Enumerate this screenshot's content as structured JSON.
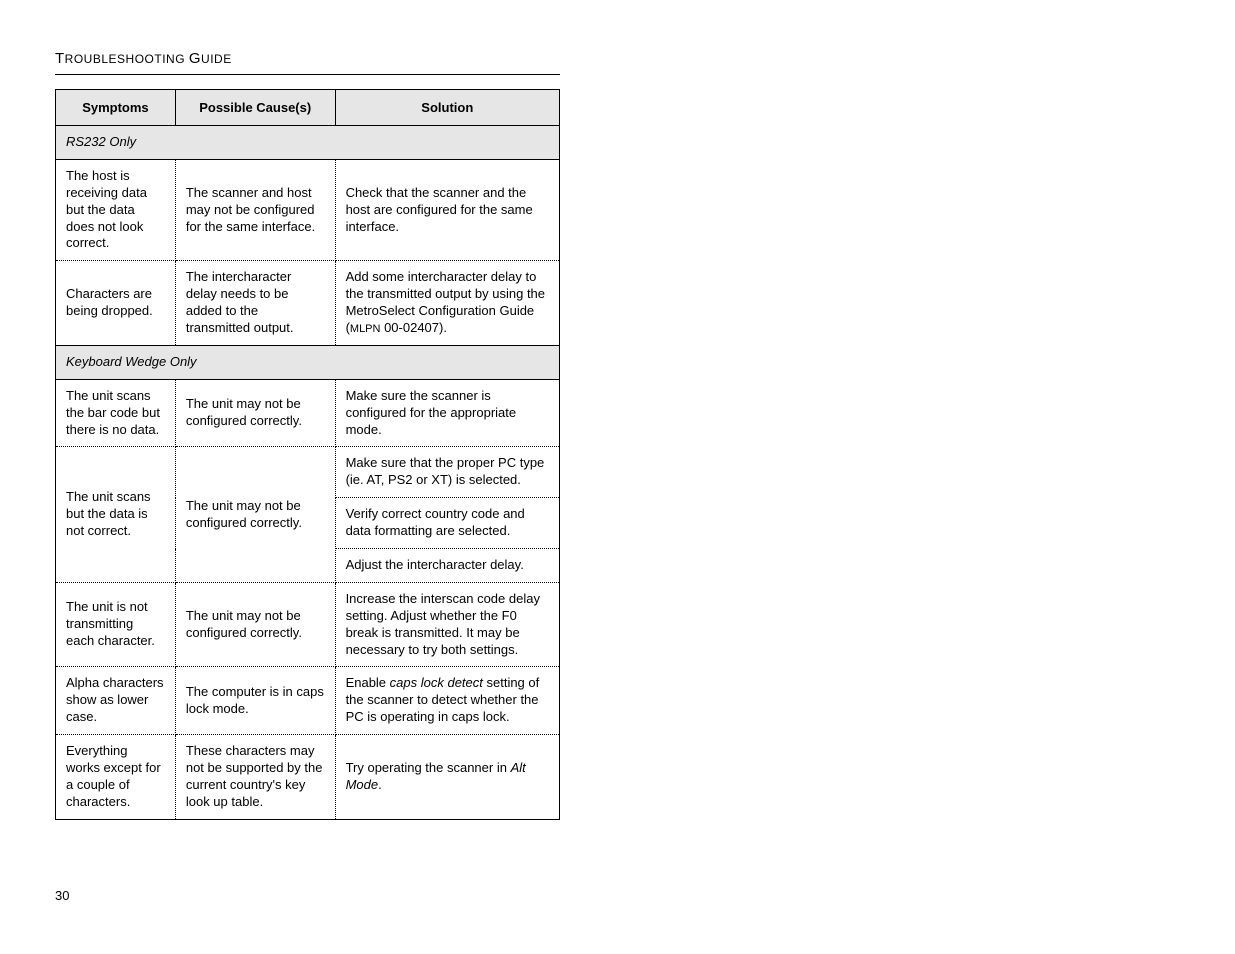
{
  "page": {
    "title_parts": [
      "T",
      "ROUBLESHOOTING ",
      "G",
      "UIDE"
    ],
    "page_number": "30"
  },
  "table": {
    "headers": {
      "symptoms": "Symptoms",
      "causes": "Possible Cause(s)",
      "solution": "Solution"
    },
    "sections": [
      {
        "label": "RS232 Only",
        "rows": [
          {
            "symptom": "The host is receiving data but the data does not look correct.",
            "cause": "The scanner and host may not be configured for the same interface.",
            "solution": "Check that the scanner and the host are configured for the same interface."
          },
          {
            "symptom": "Characters are being dropped.",
            "cause": "The intercharacter delay needs to be added to the transmitted output.",
            "solution_html": "Add some intercharacter delay to the transmitted output by using the MetroSelect Configuration Guide (<span class='smallcaps'>MLPN</span> 00-02407)."
          }
        ]
      },
      {
        "label": "Keyboard Wedge Only",
        "rows": [
          {
            "symptom": "The unit scans the bar code but there is no data.",
            "cause": "The unit may not be configured correctly.",
            "solution": "Make sure the scanner is configured for the appropriate mode."
          },
          {
            "symptom": "The unit scans but the data is not correct.",
            "cause": "The unit may not be configured correctly.",
            "solutions": [
              "Make sure that the proper PC type (ie. AT, PS2 or XT) is selected.",
              "Verify correct country code and data formatting are selected.",
              "Adjust the intercharacter delay."
            ]
          },
          {
            "symptom": "The unit is not transmitting each character.",
            "cause": "The unit may not be configured correctly.",
            "solution": "Increase the interscan code delay setting.  Adjust whether the F0 break is transmitted.  It may be necessary to try both settings."
          },
          {
            "symptom": "Alpha characters show as lower case.",
            "cause": "The computer is in caps lock mode.",
            "solution_html": "Enable <span class='italic'>caps lock detect</span> setting of the scanner to detect whether the PC is operating in caps lock."
          },
          {
            "symptom": "Everything works except for a couple of characters.",
            "cause": "These characters may not be supported by the current country's key look up table.",
            "solution_html": "Try operating the scanner in <span class='italic'>Alt Mode</span>."
          }
        ]
      }
    ]
  }
}
